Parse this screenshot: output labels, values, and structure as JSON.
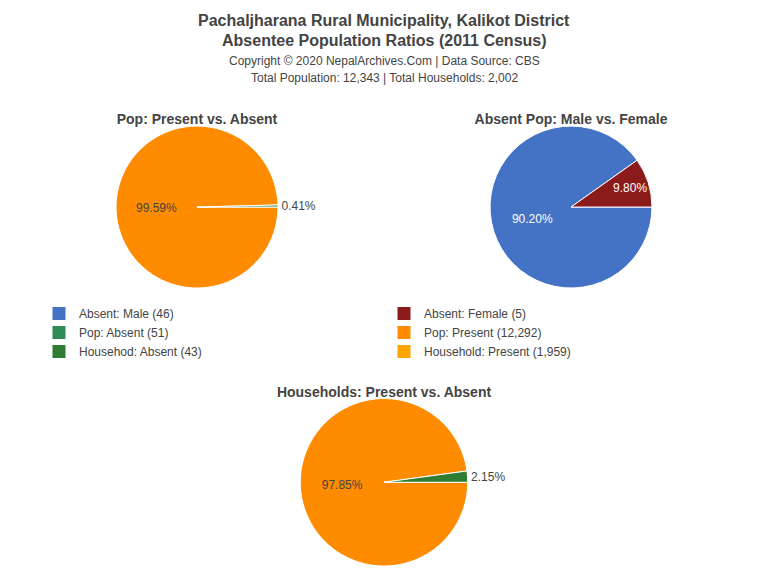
{
  "title": [
    "Pachaljharana Rural Municipality, Kalikot District",
    "Absentee Population Ratios (2011 Census)"
  ],
  "subtitle": [
    "Copyright © 2020 NepalArchives.Com | Data Source: CBS",
    "Total Population: 12,343 | Total Households: 2,002"
  ],
  "series": [
    {
      "name": "Absent: Male (46)",
      "color": "#4472C4"
    },
    {
      "name": "Absent: Female (5)",
      "color": "#8B1A1A"
    },
    {
      "name": "Pop: Absent (51)",
      "color": "#2E8B57"
    },
    {
      "name": "Pop: Present (12,292)",
      "color": "#FF8C00"
    },
    {
      "name": "Househod: Absent (43)",
      "color": "#2E7D32"
    },
    {
      "name": "Household: Present (1,959)",
      "color": "#FFA500"
    }
  ],
  "chart_data": [
    {
      "type": "pie",
      "title": "Pop: Present vs. Absent",
      "values": [
        99.59,
        0.41
      ],
      "value_labels": [
        "99.59%",
        "0.41%"
      ],
      "colors": [
        "#FF8C00",
        "#2E8B57"
      ],
      "data_labels": true
    },
    {
      "type": "pie",
      "title": "Absent Pop: Male vs. Female",
      "values": [
        90.2,
        9.8
      ],
      "value_labels": [
        "90.20%",
        "9.80%"
      ],
      "colors": [
        "#4472C4",
        "#8B1A1A"
      ],
      "data_labels": true
    },
    {
      "type": "pie",
      "title": "Households: Present vs. Absent",
      "values": [
        97.85,
        2.15
      ],
      "value_labels": [
        "97.85%",
        "2.15%"
      ],
      "colors": [
        "#FF8C00",
        "#2E7D32"
      ],
      "data_labels": true
    }
  ]
}
